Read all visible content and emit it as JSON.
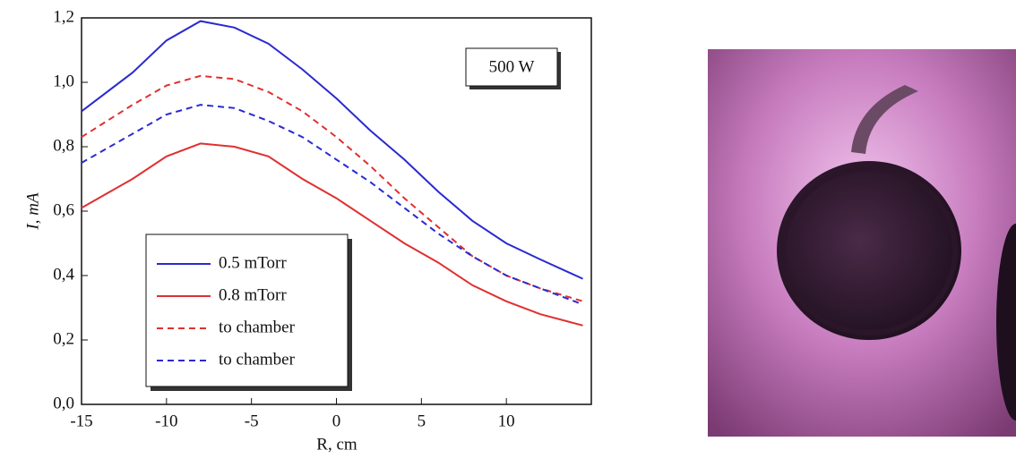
{
  "chart_data": {
    "type": "line",
    "annotation": "500 W",
    "xlabel": "R, cm",
    "ylabel": "I, mA",
    "x": [
      -15,
      -12,
      -10,
      -8,
      -6,
      -4,
      -2,
      0,
      2,
      4,
      6,
      8,
      10,
      12,
      14.5
    ],
    "series": [
      {
        "name": "0.5 mTorr",
        "color": "#2a2ad0",
        "dashed": false,
        "values": [
          0.91,
          1.03,
          1.13,
          1.19,
          1.17,
          1.12,
          1.04,
          0.95,
          0.85,
          0.76,
          0.66,
          0.57,
          0.5,
          0.45,
          0.39
        ]
      },
      {
        "name": "0.8 mTorr",
        "color": "#e03030",
        "dashed": false,
        "values": [
          0.61,
          0.7,
          0.77,
          0.81,
          0.8,
          0.77,
          0.7,
          0.64,
          0.57,
          0.5,
          0.44,
          0.37,
          0.32,
          0.28,
          0.245
        ]
      },
      {
        "name": "to chamber",
        "color": "#e03030",
        "dashed": true,
        "values": [
          0.83,
          0.93,
          0.99,
          1.02,
          1.01,
          0.97,
          0.91,
          0.83,
          0.74,
          0.64,
          0.55,
          0.46,
          0.4,
          0.36,
          0.32
        ]
      },
      {
        "name": "to chamber",
        "color": "#2a2ad0",
        "dashed": true,
        "values": [
          0.75,
          0.84,
          0.9,
          0.93,
          0.92,
          0.88,
          0.83,
          0.76,
          0.69,
          0.61,
          0.53,
          0.46,
          0.4,
          0.36,
          0.31
        ]
      }
    ],
    "xlim": [
      -15,
      15
    ],
    "xticks": [
      -15,
      -10,
      -5,
      0,
      5,
      10
    ],
    "ylim": [
      0,
      1.2
    ],
    "yticks": [
      {
        "value": 0,
        "label": "0,0"
      },
      {
        "value": 0.2,
        "label": "0,2"
      },
      {
        "value": 0.4,
        "label": "0,4"
      },
      {
        "value": 0.6,
        "label": "0,6"
      },
      {
        "value": 0.8,
        "label": "0,8"
      },
      {
        "value": 1.0,
        "label": "1,0"
      },
      {
        "value": 1.2,
        "label": "1,2"
      }
    ]
  }
}
